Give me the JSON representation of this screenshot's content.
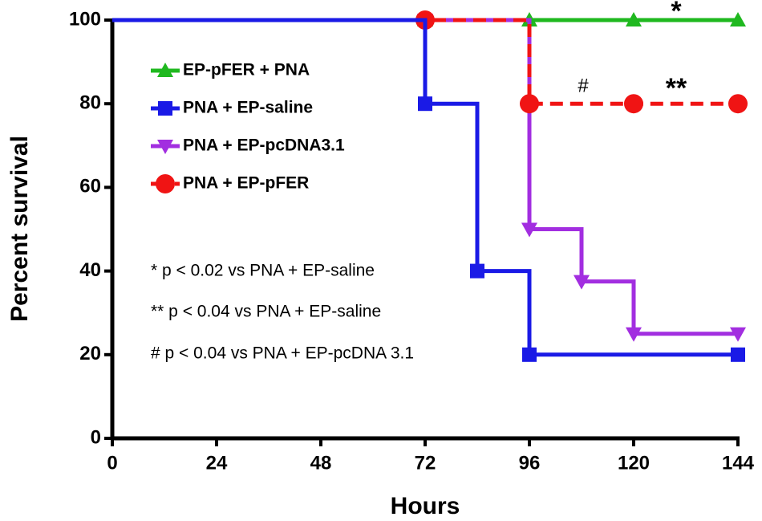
{
  "chart_data": {
    "type": "step",
    "xlabel": "Hours",
    "ylabel": "Percent survival",
    "xlim": [
      0,
      144
    ],
    "xticks": [
      0,
      24,
      48,
      72,
      96,
      120,
      144
    ],
    "ylim": [
      0,
      100
    ],
    "yticks": [
      0,
      20,
      40,
      60,
      80,
      100
    ],
    "series": [
      {
        "name": "EP-pFER + PNA",
        "color": "#1fb81f",
        "marker": "triangle-up",
        "dashed": false,
        "x": [
          0,
          72,
          96,
          120,
          144
        ],
        "values": [
          100,
          100,
          100,
          100,
          100
        ]
      },
      {
        "name": "PNA + EP-saline",
        "color": "#1a1ae6",
        "marker": "square",
        "dashed": false,
        "x": [
          0,
          72,
          84,
          96,
          144
        ],
        "values": [
          100,
          80,
          40,
          20,
          20
        ]
      },
      {
        "name": "PNA + EP-pcDNA3.1",
        "color": "#a22ee0",
        "marker": "triangle-down",
        "dashed": false,
        "x": [
          0,
          72,
          96,
          108,
          120,
          144
        ],
        "values": [
          100,
          100,
          50,
          37.5,
          25,
          25
        ]
      },
      {
        "name": "PNA + EP-pFER",
        "color": "#f01414",
        "marker": "circle",
        "dashed": true,
        "x": [
          0,
          72,
          96,
          120,
          144
        ],
        "values": [
          100,
          100,
          80,
          80,
          80
        ]
      }
    ],
    "annotations": [
      "*",
      "#",
      "**"
    ],
    "notes": [
      "* p < 0.02 vs PNA + EP-saline",
      "** p < 0.04 vs PNA + EP-saline",
      "# p < 0.04 vs PNA + EP-pcDNA 3.1"
    ]
  }
}
